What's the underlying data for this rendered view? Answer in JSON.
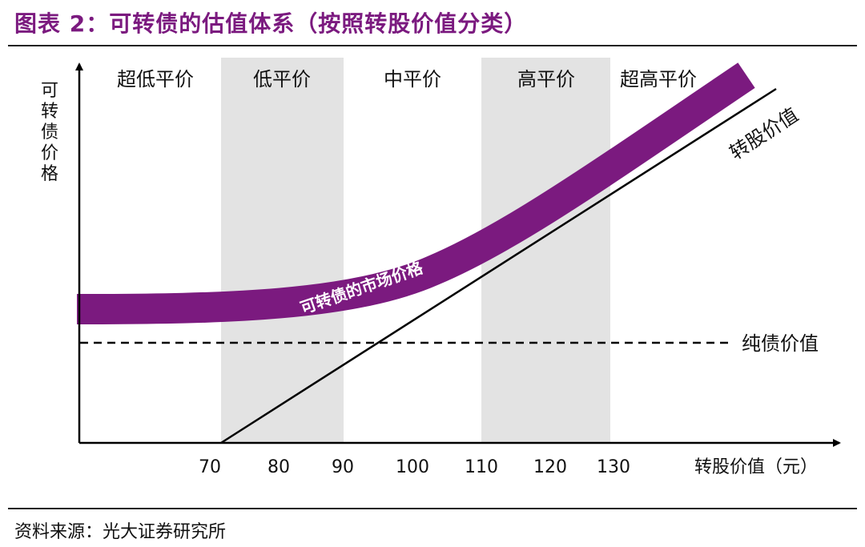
{
  "title": "图表 2：可转债的估值体系（按照转股价值分类）",
  "source": "资料来源：光大证券研究所",
  "y_axis_label": "可转债价格",
  "x_axis_label": "转股价值（元）",
  "x_ticks": [
    "70",
    "80",
    "90",
    "100",
    "110",
    "120",
    "130"
  ],
  "zones": [
    "超低平价",
    "低平价",
    "中平价",
    "高平价",
    "超高平价"
  ],
  "curves": {
    "market_price": "可转债的市场价格",
    "conversion_value": "转股价值",
    "pure_bond_value": "纯债价值"
  },
  "colors": {
    "accent": "#7b1a7f",
    "zone_shade": "#e3e3e3",
    "line": "#000000"
  }
}
